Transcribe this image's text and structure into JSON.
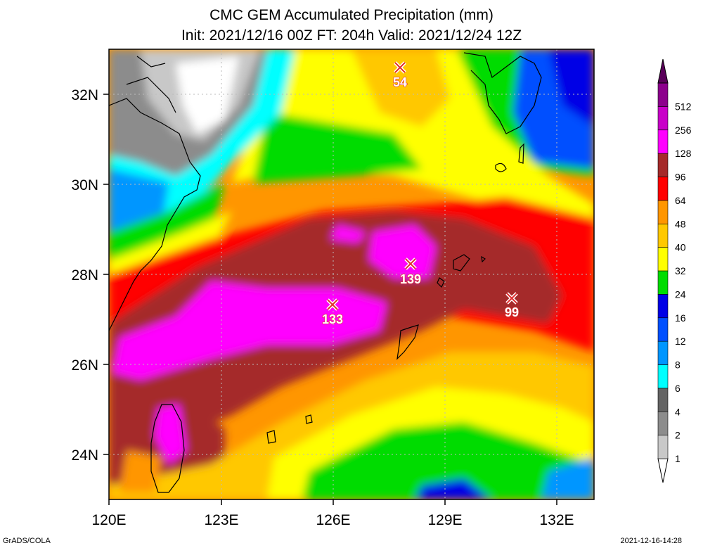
{
  "title": {
    "line1": "CMC GEM Accumulated Precipitation (mm)",
    "line2": "Init: 2021/12/16 00Z  FT: 204h  Valid: 2021/12/24 12Z"
  },
  "axes": {
    "x_ticks": [
      "120E",
      "123E",
      "126E",
      "129E",
      "132E"
    ],
    "y_ticks": [
      "32N",
      "30N",
      "28N",
      "26N",
      "24N"
    ]
  },
  "colorbar": {
    "levels": [
      "1",
      "2",
      "4",
      "6",
      "8",
      "12",
      "16",
      "24",
      "32",
      "40",
      "48",
      "64",
      "96",
      "128",
      "256",
      "512"
    ],
    "colors": [
      "#ffffff",
      "#c8c8c8",
      "#8c8c8c",
      "#646464",
      "#00ffff",
      "#0096ff",
      "#0050ff",
      "#0000e6",
      "#00dc00",
      "#ffff00",
      "#ffc800",
      "#ff9600",
      "#ff0000",
      "#a52a2a",
      "#ff00ff",
      "#c800c8",
      "#8c008c",
      "#5a005a"
    ]
  },
  "markers": [
    {
      "name": "max-54",
      "label": "54"
    },
    {
      "name": "max-139",
      "label": "139"
    },
    {
      "name": "max-133",
      "label": "133"
    },
    {
      "name": "max-99",
      "label": "99"
    }
  ],
  "footer": {
    "left": "GrADS/COLA",
    "right": "2021-12-16-14:28"
  }
}
